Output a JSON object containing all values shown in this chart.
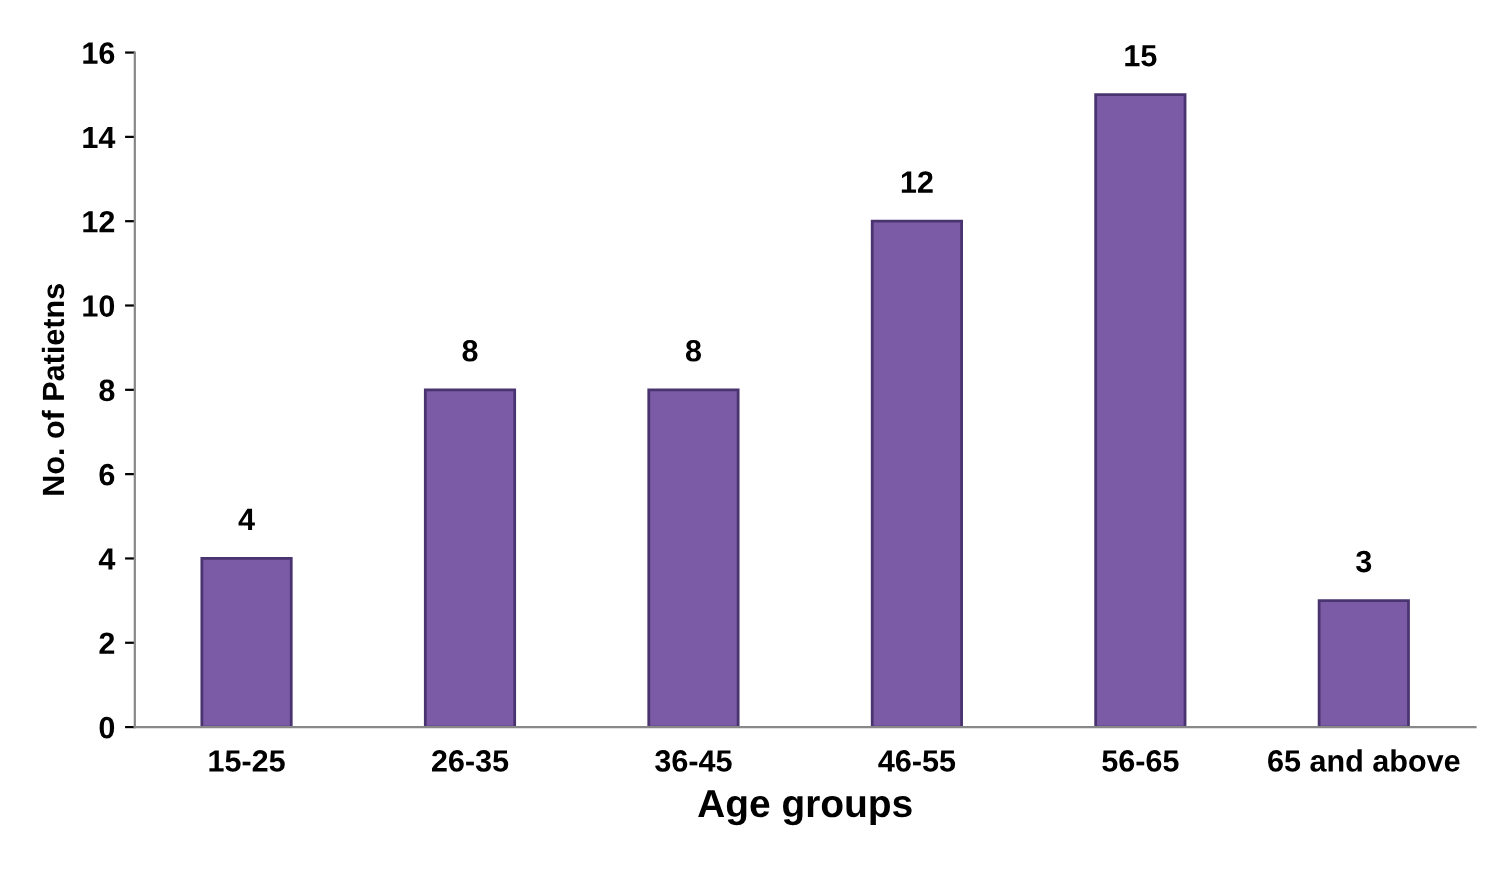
{
  "chart_data": {
    "type": "bar",
    "xlabel": "Age groups",
    "ylabel": "No. of Patietns",
    "categories": [
      "15-25",
      "26-35",
      "36-45",
      "46-55",
      "56-65",
      "65 and above"
    ],
    "values": [
      4,
      8,
      8,
      12,
      15,
      3
    ],
    "color": "#7b5aa6",
    "ylim": [
      0,
      16
    ],
    "yticks": [
      0,
      2,
      4,
      6,
      8,
      10,
      12,
      14,
      16
    ],
    "grid": false,
    "data_labels": true
  }
}
